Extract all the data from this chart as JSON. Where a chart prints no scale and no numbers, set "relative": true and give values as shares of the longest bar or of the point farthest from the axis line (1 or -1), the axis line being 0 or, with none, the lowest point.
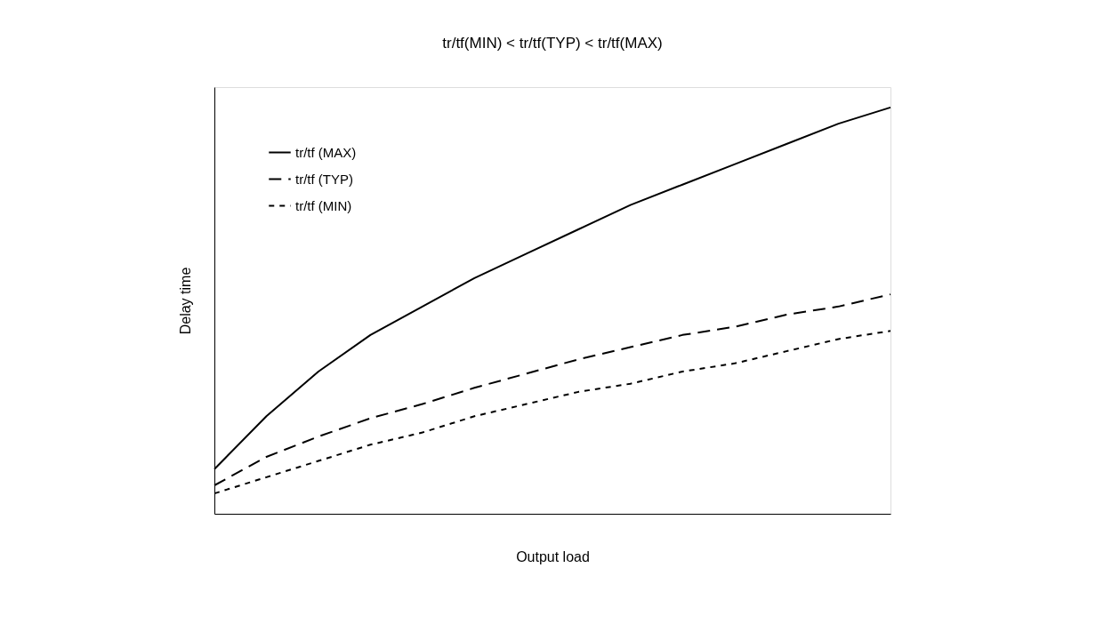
{
  "chart_data": {
    "type": "line",
    "title": "tr/tf(MIN) < tr/tf(TYP) < tr/tf(MAX)",
    "xlabel": "Output load",
    "ylabel": "Delay time",
    "relative": true,
    "categories": [
      null,
      null,
      null,
      null,
      null,
      null,
      null,
      null,
      null,
      null,
      null,
      null,
      null,
      null
    ],
    "series": [
      {
        "name": "tr/tf (MAX)",
        "color": "#000000",
        "line_style": "solid",
        "values": [
          0.11,
          0.24,
          0.35,
          0.44,
          0.51,
          0.58,
          0.64,
          0.7,
          0.76,
          0.81,
          0.86,
          0.91,
          0.96,
          1
        ]
      },
      {
        "name": "tr/tf (TYP)",
        "color": "#000000",
        "line_style": "dashed",
        "values": [
          0.07,
          0.14,
          0.19,
          0.235,
          0.27,
          0.31,
          0.345,
          0.38,
          0.41,
          0.44,
          0.46,
          0.49,
          0.51,
          0.54
        ]
      },
      {
        "name": "tr/tf (MIN)",
        "color": "#000000",
        "line_style": "dotted",
        "values": [
          0.05,
          0.09,
          0.13,
          0.17,
          0.2,
          0.24,
          0.27,
          0.3,
          0.32,
          0.35,
          0.37,
          0.4,
          0.43,
          0.45
        ]
      }
    ],
    "legend": "top left",
    "grid": false,
    "marker": "none"
  }
}
